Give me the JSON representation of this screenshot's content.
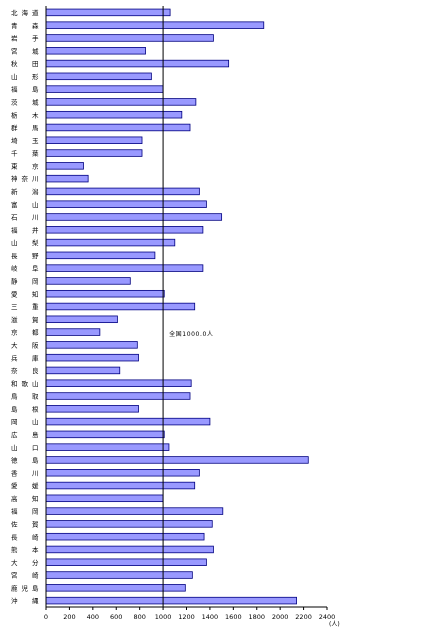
{
  "chart_data": {
    "type": "bar",
    "orientation": "horizontal",
    "categories": [
      "北海道",
      "青森",
      "岩手",
      "宮城",
      "秋田",
      "山形",
      "福島",
      "茨城",
      "栃木",
      "群馬",
      "埼玉",
      "千葉",
      "東京",
      "神奈川",
      "新潟",
      "富山",
      "石川",
      "福井",
      "山梨",
      "長野",
      "岐阜",
      "静岡",
      "愛知",
      "三重",
      "滋賀",
      "京都",
      "大阪",
      "兵庫",
      "奈良",
      "和歌山",
      "鳥取",
      "島根",
      "岡山",
      "広島",
      "山口",
      "徳島",
      "香川",
      "愛媛",
      "高知",
      "福岡",
      "佐賀",
      "長崎",
      "熊本",
      "大分",
      "宮崎",
      "鹿児島",
      "沖縄"
    ],
    "values": [
      1060,
      1860,
      1430,
      850,
      1560,
      900,
      1000,
      1280,
      1160,
      1230,
      820,
      820,
      320,
      360,
      1310,
      1370,
      1500,
      1340,
      1100,
      930,
      1340,
      720,
      1010,
      1270,
      610,
      460,
      780,
      790,
      630,
      1240,
      1230,
      790,
      1400,
      1010,
      1050,
      2240,
      1310,
      1270,
      1000,
      1510,
      1420,
      1350,
      1430,
      1370,
      1250,
      1190,
      2140
    ],
    "xlim": [
      0,
      2400
    ],
    "xticks": [
      0,
      200,
      400,
      600,
      800,
      1000,
      1200,
      1400,
      1600,
      1800,
      2000,
      2200,
      2400
    ],
    "unit_label": "(人)",
    "reference_value": 1000,
    "reference_label": "全国1000.0人",
    "bar_color": "#9999ff",
    "bar_stroke": "#000080",
    "grid": false
  }
}
